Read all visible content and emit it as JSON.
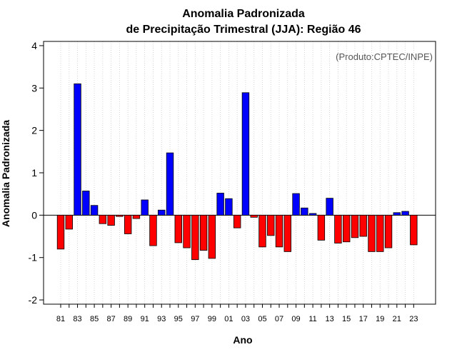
{
  "chart_data": {
    "type": "bar",
    "title_line1": "Anomalia Padronizada",
    "title_line2": "de Precipitação Trimestral (JJA): Região 46",
    "xlabel": "Ano",
    "ylabel": "Anomalia Padronizada",
    "credit": "(Produto:CPTEC/INPE)",
    "ylim": [
      -2.1,
      4.1
    ],
    "yticks": [
      "-2",
      "-1",
      "0",
      "1",
      "2",
      "3",
      "4"
    ],
    "xtick_labels": [
      "81",
      "83",
      "85",
      "87",
      "89",
      "91",
      "93",
      "95",
      "97",
      "99",
      "01",
      "03",
      "05",
      "07",
      "09",
      "11",
      "13",
      "15",
      "17",
      "19",
      "21",
      "23"
    ],
    "grid": "vertical-dotted",
    "colors": {
      "positive": "#0000ff",
      "negative": "#ff0000"
    },
    "categories": [
      "1981",
      "1982",
      "1983",
      "1984",
      "1985",
      "1986",
      "1987",
      "1988",
      "1989",
      "1990",
      "1991",
      "1992",
      "1993",
      "1994",
      "1995",
      "1996",
      "1997",
      "1998",
      "1999",
      "2000",
      "2001",
      "2002",
      "2003",
      "2004",
      "2005",
      "2006",
      "2007",
      "2008",
      "2009",
      "2010",
      "2011",
      "2012",
      "2013",
      "2014",
      "2015",
      "2016",
      "2017",
      "2018",
      "2019",
      "2020",
      "2021",
      "2022",
      "2023"
    ],
    "values": [
      -0.8,
      -0.33,
      3.1,
      0.57,
      0.23,
      -0.2,
      -0.24,
      -0.03,
      -0.44,
      -0.08,
      0.36,
      -0.72,
      0.12,
      1.47,
      -0.65,
      -0.77,
      -1.05,
      -0.83,
      -1.02,
      0.52,
      0.39,
      -0.3,
      2.89,
      -0.05,
      -0.75,
      -0.48,
      -0.75,
      -0.86,
      0.51,
      0.17,
      0.04,
      -0.59,
      0.4,
      -0.66,
      -0.63,
      -0.53,
      -0.5,
      -0.86,
      -0.86,
      -0.77,
      0.06,
      0.09,
      -0.7
    ]
  }
}
